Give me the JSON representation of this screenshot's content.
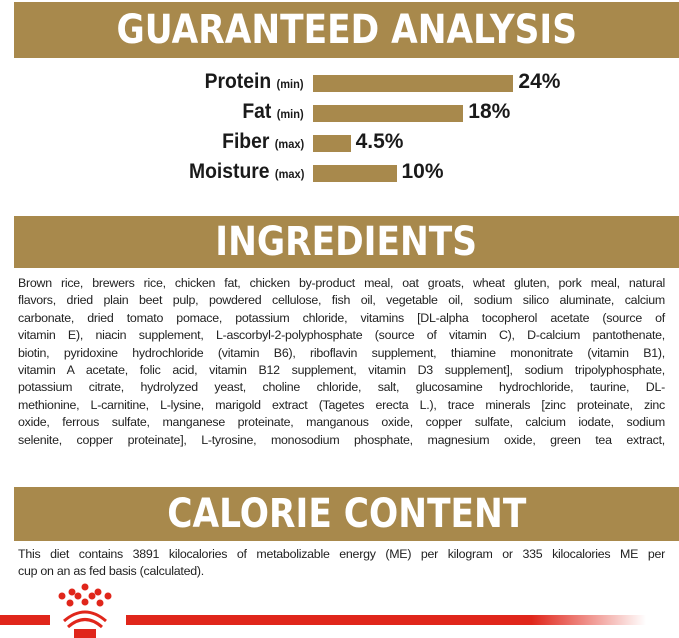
{
  "analysis": {
    "title": "GUARANTEED ANALYSIS",
    "items": [
      {
        "name": "Protein",
        "qualifier": "(min)",
        "value": 24,
        "label": "24%"
      },
      {
        "name": "Fat",
        "qualifier": "(min)",
        "value": 18,
        "label": "18%"
      },
      {
        "name": "Fiber",
        "qualifier": "(max)",
        "value": 4.5,
        "label": "4.5%"
      },
      {
        "name": "Moisture",
        "qualifier": "(max)",
        "value": 10,
        "label": "10%"
      }
    ]
  },
  "ingredients": {
    "title": "INGREDIENTS",
    "lines": [
      "Brown rice, brewers rice, chicken fat, chicken by-product meal, oat groats, wheat gluten, pork meal, natural",
      "flavors, dried plain beet pulp, powdered cellulose, fish oil, vegetable oil, sodium silico aluminate, calcium",
      "carbonate, dried tomato pomace, potassium chloride, vitamins [DL-alpha tocopherol acetate (source of",
      "vitamin E), niacin supplement, L-ascorbyl-2-polyphosphate (source of vitamin C), D-calcium pantothenate,",
      "biotin, pyridoxine hydrochloride (vitamin B6), riboflavin supplement, thiamine mononitrate (vitamin B1),",
      "vitamin A acetate, folic acid, vitamin B12 supplement, vitamin D3 supplement], sodium tripolyphosphate,",
      "potassium citrate, hydrolyzed yeast, choline chloride, salt, glucosamine hydrochloride, taurine, DL-",
      "methionine, L-carnitine, L-lysine, marigold extract (Tagetes erecta L.), trace minerals [zinc proteinate, zinc",
      "oxide, ferrous sulfate, manganese proteinate, manganous oxide, copper sulfate, calcium iodate, sodium",
      "selenite, copper proteinate], L-tyrosine, monosodium phosphate, magnesium oxide, green tea extract,"
    ]
  },
  "calorie": {
    "title": "CALORIE CONTENT",
    "lines": [
      "This diet contains 3891 kilocalories of metabolizable energy (ME) per kilogram or 335 kilocalories ME per",
      "cup on an as fed basis (calculated)."
    ]
  },
  "colors": {
    "gold": "#a8894c",
    "brand_red": "#e0261b"
  },
  "footer": {
    "logo": "royal-canin-crown-logo"
  }
}
